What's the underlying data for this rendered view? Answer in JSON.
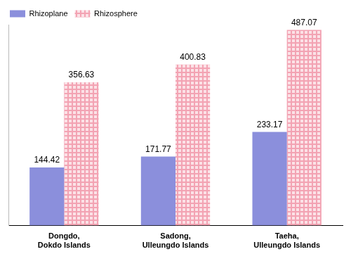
{
  "chart_data": {
    "type": "bar",
    "categories": [
      "Dongdo,\nDokdo Islands",
      "Sadong,\nUlleungdo Islands",
      "Taeha,\nUlleungdo Islands"
    ],
    "series": [
      {
        "name": "Rhizoplane",
        "color": "#8b8fdc",
        "values": [
          144.42,
          171.77,
          233.17
        ]
      },
      {
        "name": "Rhizosphere",
        "color": "#f3a3b3",
        "values": [
          356.63,
          400.83,
          487.07
        ]
      }
    ],
    "ylim": [
      0,
      500
    ],
    "grid": false,
    "legend": "top-left",
    "data_labels": true,
    "tick_labels": "x"
  }
}
